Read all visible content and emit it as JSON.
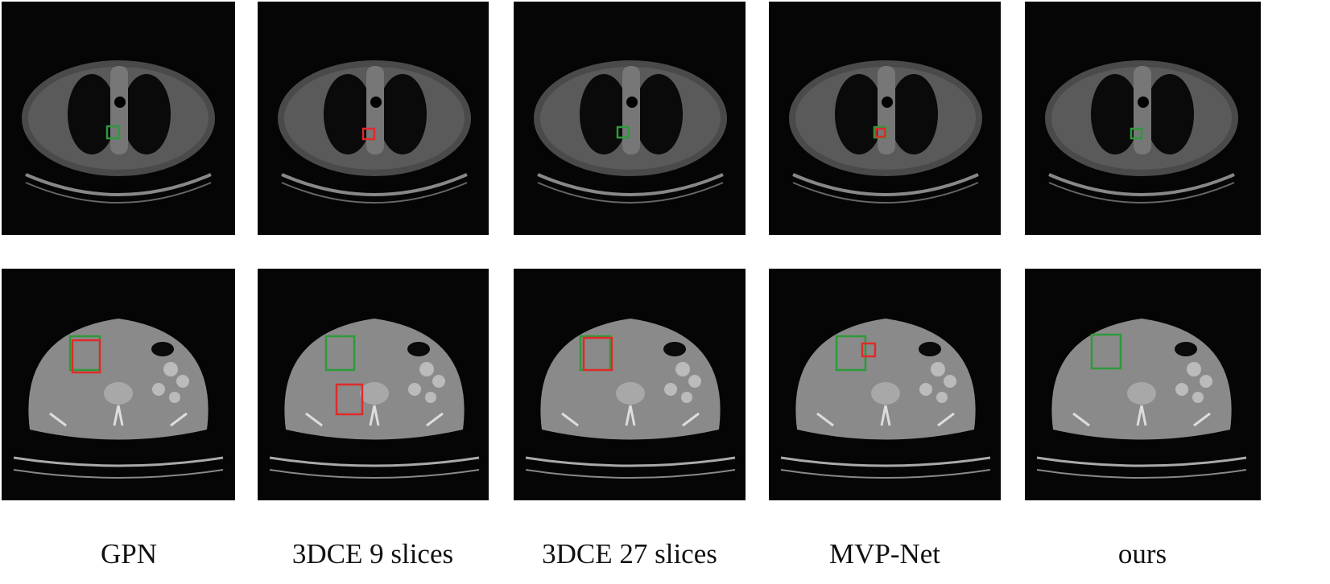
{
  "figure": {
    "columns": [
      {
        "label": "GPN"
      },
      {
        "label": "3DCE 9 slices"
      },
      {
        "label": "3DCE 27 slices"
      },
      {
        "label": "MVP-Net"
      },
      {
        "label": "ours"
      }
    ],
    "colors": {
      "ground_truth_box": "#2e9a3a",
      "prediction_box": "#e02a2a"
    }
  }
}
